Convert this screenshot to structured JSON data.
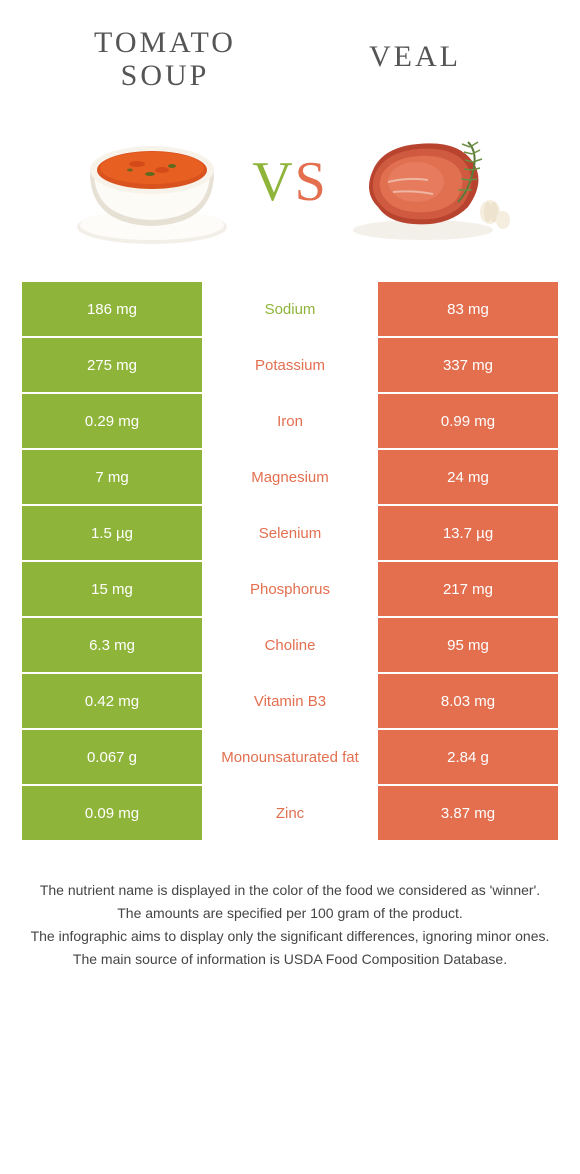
{
  "colors": {
    "left": "#8fb43a",
    "right": "#e36f4f",
    "vs_left": "#8fb43a",
    "vs_right": "#e36f4f"
  },
  "titles": {
    "left": "TOMATO\nSOUP",
    "right": "VEAL"
  },
  "vs_text": "VS",
  "rows": [
    {
      "left": "186 mg",
      "label": "Sodium",
      "right": "83 mg",
      "winner": "left"
    },
    {
      "left": "275 mg",
      "label": "Potassium",
      "right": "337 mg",
      "winner": "right"
    },
    {
      "left": "0.29 mg",
      "label": "Iron",
      "right": "0.99 mg",
      "winner": "right"
    },
    {
      "left": "7 mg",
      "label": "Magnesium",
      "right": "24 mg",
      "winner": "right"
    },
    {
      "left": "1.5 µg",
      "label": "Selenium",
      "right": "13.7 µg",
      "winner": "right"
    },
    {
      "left": "15 mg",
      "label": "Phosphorus",
      "right": "217 mg",
      "winner": "right"
    },
    {
      "left": "6.3 mg",
      "label": "Choline",
      "right": "95 mg",
      "winner": "right"
    },
    {
      "left": "0.42 mg",
      "label": "Vitamin B3",
      "right": "8.03 mg",
      "winner": "right"
    },
    {
      "left": "0.067 g",
      "label": "Monounsaturated fat",
      "right": "2.84 g",
      "winner": "right"
    },
    {
      "left": "0.09 mg",
      "label": "Zinc",
      "right": "3.87 mg",
      "winner": "right"
    }
  ],
  "footnotes": [
    "The nutrient name is displayed in the color of the food we considered as 'winner'.",
    "The amounts are specified per 100 gram of the product.",
    "The infographic aims to display only the significant differences, ignoring minor ones.",
    "The main source of information is USDA Food Composition Database."
  ]
}
